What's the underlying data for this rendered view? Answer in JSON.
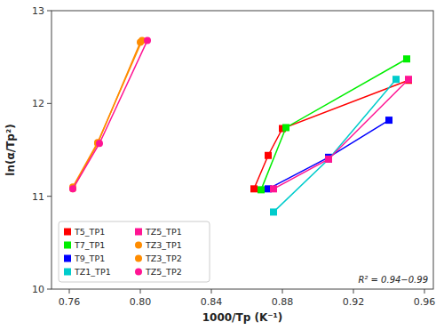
{
  "chart_data": {
    "type": "line",
    "x_label": "1000/Tp (K⁻¹)",
    "y_label": "ln(α/Tp²)",
    "annotations": [
      {
        "text": "R² = 0.94−0.99"
      }
    ],
    "xlim": [
      0.75,
      0.965
    ],
    "ylim": [
      10.0,
      13.0
    ],
    "xticks": [
      0.76,
      {
        "value": 0.8,
        "label": "0.80"
      },
      0.84,
      0.88,
      0.92,
      0.96
    ],
    "yticks": [
      10,
      11,
      12,
      13
    ],
    "grid": false,
    "legend": "lower left",
    "series": [
      {
        "name": "T5_TP1",
        "color": "#FF0000",
        "marker": "square",
        "x": [
          0.864,
          0.872,
          0.88,
          0.951
        ],
        "values": [
          11.08,
          11.44,
          11.73,
          12.25
        ]
      },
      {
        "name": "T7_TP1",
        "color": "#00EE00",
        "marker": "square",
        "x": [
          0.868,
          0.882,
          0.95
        ],
        "values": [
          11.07,
          11.74,
          12.48
        ]
      },
      {
        "name": "T9_TP1",
        "color": "#0000FF",
        "marker": "square",
        "x": [
          0.872,
          0.906,
          0.94
        ],
        "values": [
          11.08,
          11.42,
          11.82
        ]
      },
      {
        "name": "TZ1_TP1",
        "color": "#00CCCC",
        "marker": "square",
        "x": [
          0.875,
          0.906,
          0.944
        ],
        "values": [
          10.83,
          11.4,
          12.26
        ]
      },
      {
        "name": "TZ5_TP1",
        "color": "#FF1493",
        "marker": "square",
        "x": [
          0.875,
          0.906,
          0.951
        ],
        "values": [
          11.08,
          11.4,
          12.26
        ]
      },
      {
        "name": "TZ3_TP1",
        "color": "#FF8C00",
        "marker": "circle",
        "x": [
          0.762,
          0.776,
          0.8
        ],
        "values": [
          11.08,
          11.57,
          12.66
        ]
      },
      {
        "name": "TZ3_TP2",
        "color": "#FF8C00",
        "marker": "circle",
        "x": [
          0.762,
          0.776,
          0.801
        ],
        "values": [
          11.1,
          11.58,
          12.68
        ]
      },
      {
        "name": "TZ5_TP2",
        "color": "#FF1493",
        "marker": "circle",
        "x": [
          0.762,
          0.777,
          0.804
        ],
        "values": [
          11.08,
          11.57,
          12.68
        ]
      }
    ]
  }
}
